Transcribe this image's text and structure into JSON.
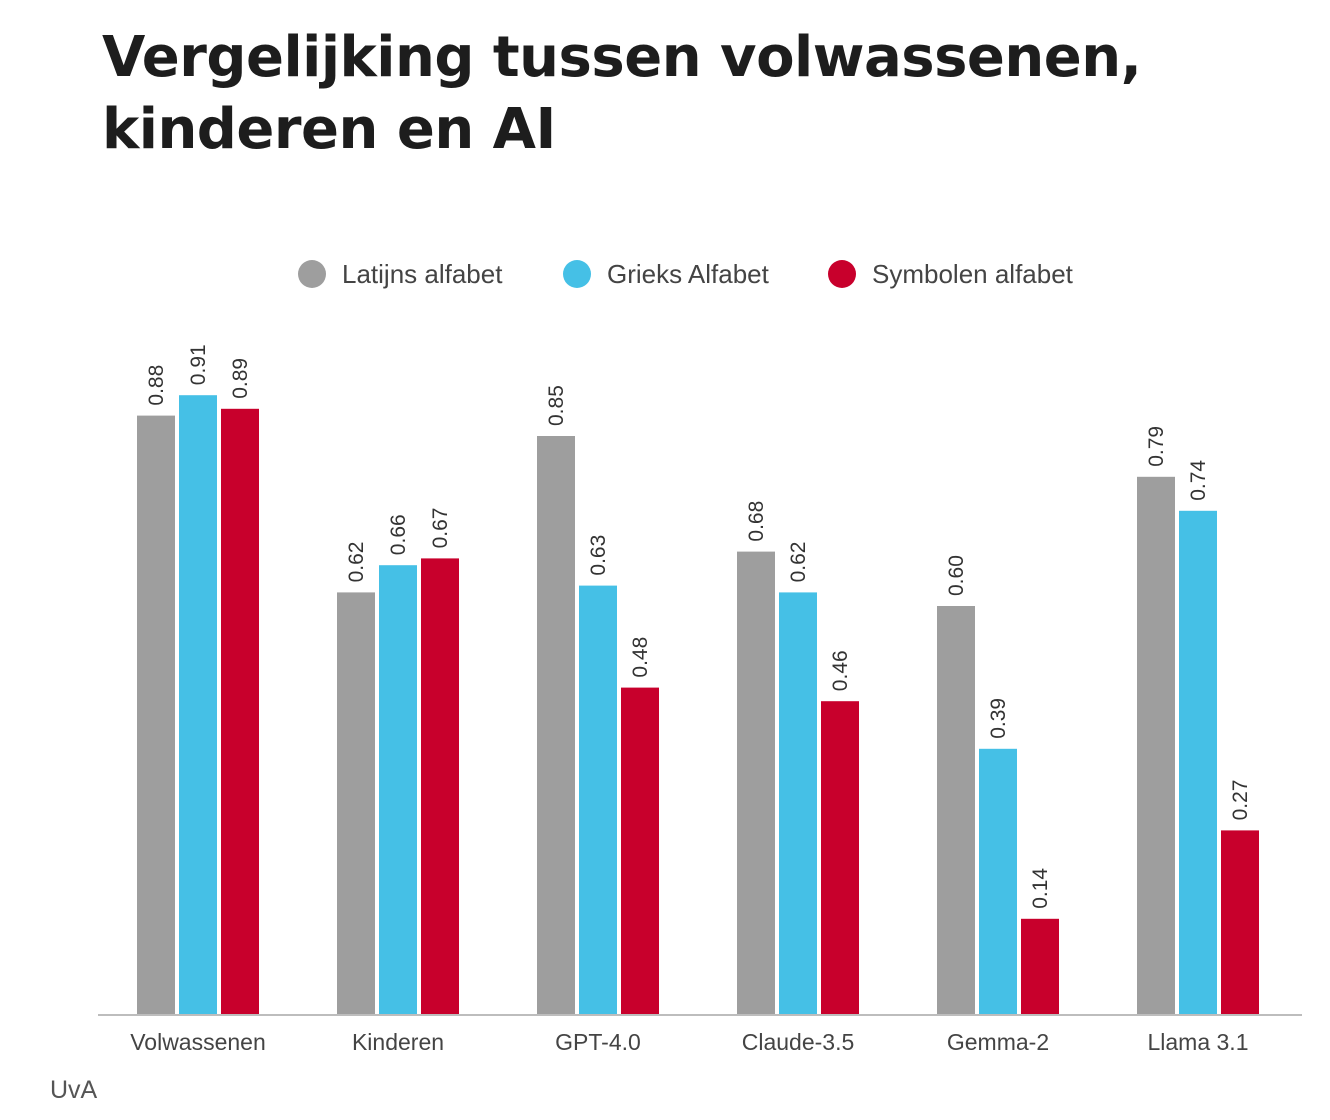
{
  "chart_data": {
    "type": "bar",
    "title": "Vergelijking tussen volwassenen, kinderen en AI",
    "categories": [
      "Volwassenen",
      "Kinderen",
      "GPT-4.0",
      "Claude-3.5",
      "Gemma-2",
      "Llama 3.1"
    ],
    "series": [
      {
        "name": "Latijns alfabet",
        "color": "#9e9e9e",
        "values": [
          0.88,
          0.62,
          0.85,
          0.68,
          0.6,
          0.79
        ]
      },
      {
        "name": "Grieks Alfabet",
        "color": "#45c0e6",
        "values": [
          0.91,
          0.66,
          0.63,
          0.62,
          0.39,
          0.74
        ]
      },
      {
        "name": "Symbolen alfabet",
        "color": "#c8002c",
        "values": [
          0.89,
          0.67,
          0.48,
          0.46,
          0.14,
          0.27
        ]
      }
    ],
    "ylim": [
      0,
      1
    ],
    "grid": false,
    "legend": "top-center",
    "value_format": "2 decimals, rotated labels above bars"
  },
  "footer": {
    "source": "UvA"
  }
}
